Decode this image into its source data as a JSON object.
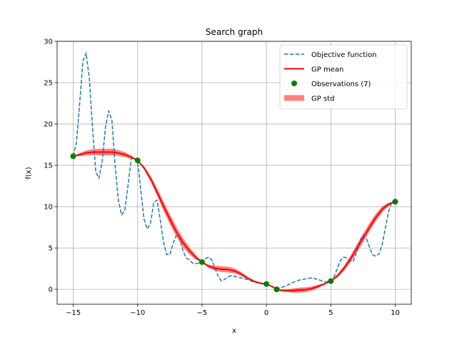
{
  "chart_data": {
    "type": "line",
    "title": "Search graph",
    "xlabel": "x",
    "ylabel": "f(x)",
    "xlim": [
      -16.25,
      11.25
    ],
    "ylim": [
      -1.8,
      30
    ],
    "xticks": [
      -15,
      -10,
      -5,
      0,
      5,
      10
    ],
    "yticks": [
      0,
      5,
      10,
      15,
      20,
      25,
      30
    ],
    "grid": true,
    "legend_position": "top-right",
    "colors": {
      "objective": "#1f77b4",
      "gp_mean": "#ff0000",
      "gp_std": "#ff0000",
      "observations": "#008000"
    },
    "series": [
      {
        "name": "Objective function",
        "style": "dashed",
        "x": [
          -15,
          -14.75,
          -14.5,
          -14.25,
          -14,
          -13.75,
          -13.5,
          -13.25,
          -13,
          -12.75,
          -12.5,
          -12.25,
          -12,
          -11.75,
          -11.5,
          -11.25,
          -11,
          -10.75,
          -10.5,
          -10.25,
          -10,
          -9.75,
          -9.5,
          -9.25,
          -9,
          -8.75,
          -8.5,
          -8.25,
          -8,
          -7.75,
          -7.5,
          -7.25,
          -7,
          -6.75,
          -6.5,
          -6.25,
          -6,
          -5.75,
          -5.5,
          -5.25,
          -5,
          -4.75,
          -4.5,
          -4.25,
          -4,
          -3.75,
          -3.5,
          -3.25,
          -3,
          -2.75,
          -2.5,
          -2.25,
          -2,
          -1.5,
          -1,
          -0.5,
          0,
          0.5,
          0.8,
          1,
          1.5,
          2,
          2.5,
          3,
          3.5,
          4,
          4.5,
          5,
          5.25,
          5.5,
          5.75,
          6,
          6.25,
          6.5,
          6.75,
          7,
          7.25,
          7.5,
          7.75,
          8,
          8.25,
          8.5,
          8.75,
          9,
          9.25,
          9.5,
          9.75,
          10
        ],
        "y": [
          16.1,
          17.8,
          22.5,
          27.6,
          28.6,
          25.5,
          19.5,
          14.2,
          13.4,
          15.5,
          19.5,
          21.6,
          20.5,
          15.0,
          10.8,
          9.0,
          9.5,
          12.5,
          15.8,
          15.9,
          15.6,
          12.0,
          8.5,
          7.3,
          8.0,
          10.5,
          10.8,
          8.5,
          5.8,
          4.2,
          4.2,
          5.5,
          6.5,
          6.3,
          4.8,
          3.8,
          3.6,
          3.2,
          3.1,
          3.2,
          3.3,
          3.7,
          3.9,
          3.6,
          2.6,
          1.6,
          1.0,
          1.2,
          1.5,
          1.65,
          1.6,
          1.5,
          1.4,
          1.2,
          0.9,
          0.7,
          0.6,
          0.3,
          0.0,
          0.15,
          0.4,
          0.8,
          1.1,
          1.25,
          1.4,
          1.2,
          0.9,
          1.0,
          1.5,
          2.5,
          3.5,
          3.9,
          3.8,
          3.4,
          3.4,
          4.5,
          5.8,
          6.6,
          6.2,
          5.1,
          4.2,
          4.0,
          4.3,
          5.5,
          7.5,
          9.5,
          10.6,
          10.6
        ]
      },
      {
        "name": "GP mean",
        "style": "solid",
        "x": [
          -15,
          -14.5,
          -14,
          -13.5,
          -13,
          -12.5,
          -12,
          -11.5,
          -11,
          -10.5,
          -10,
          -9.5,
          -9,
          -8.5,
          -8,
          -7.5,
          -7,
          -6.5,
          -6,
          -5.5,
          -5,
          -4.5,
          -4,
          -3.5,
          -3,
          -2.5,
          -2,
          -1.5,
          -1,
          -0.5,
          0,
          0.5,
          0.8,
          1,
          1.5,
          2,
          2.5,
          3,
          3.5,
          4,
          4.5,
          5,
          5.5,
          6,
          6.5,
          7,
          7.5,
          8,
          8.5,
          9,
          9.5,
          10
        ],
        "y": [
          16.1,
          16.3,
          16.5,
          16.6,
          16.6,
          16.6,
          16.6,
          16.5,
          16.3,
          16.0,
          15.6,
          14.7,
          13.4,
          11.8,
          10.1,
          8.5,
          7.0,
          5.7,
          4.7,
          3.9,
          3.3,
          2.8,
          2.55,
          2.45,
          2.4,
          2.25,
          1.9,
          1.4,
          1.0,
          0.75,
          0.65,
          0.3,
          0.0,
          -0.1,
          -0.15,
          -0.15,
          -0.1,
          -0.05,
          0.1,
          0.35,
          0.65,
          1.0,
          1.6,
          2.5,
          3.6,
          4.9,
          6.2,
          7.5,
          8.7,
          9.7,
          10.3,
          10.6
        ]
      },
      {
        "name": "GP std",
        "style": "band",
        "std": [
          0,
          0.2,
          0.3,
          0.35,
          0.4,
          0.4,
          0.4,
          0.35,
          0.3,
          0.2,
          0,
          0.2,
          0.35,
          0.45,
          0.55,
          0.6,
          0.6,
          0.55,
          0.45,
          0.3,
          0,
          0.2,
          0.3,
          0.35,
          0.35,
          0.3,
          0.25,
          0.15,
          0.1,
          0.05,
          0,
          0.05,
          0,
          0.05,
          0.15,
          0.25,
          0.3,
          0.3,
          0.25,
          0.2,
          0.1,
          0,
          0.2,
          0.3,
          0.4,
          0.5,
          0.5,
          0.5,
          0.45,
          0.35,
          0.2,
          0
        ]
      },
      {
        "name": "Observations (7)",
        "style": "scatter",
        "x": [
          -15,
          -10,
          -5,
          0,
          0.8,
          5,
          10
        ],
        "y": [
          16.1,
          15.6,
          3.3,
          0.65,
          0.0,
          1.0,
          10.6
        ]
      }
    ]
  }
}
